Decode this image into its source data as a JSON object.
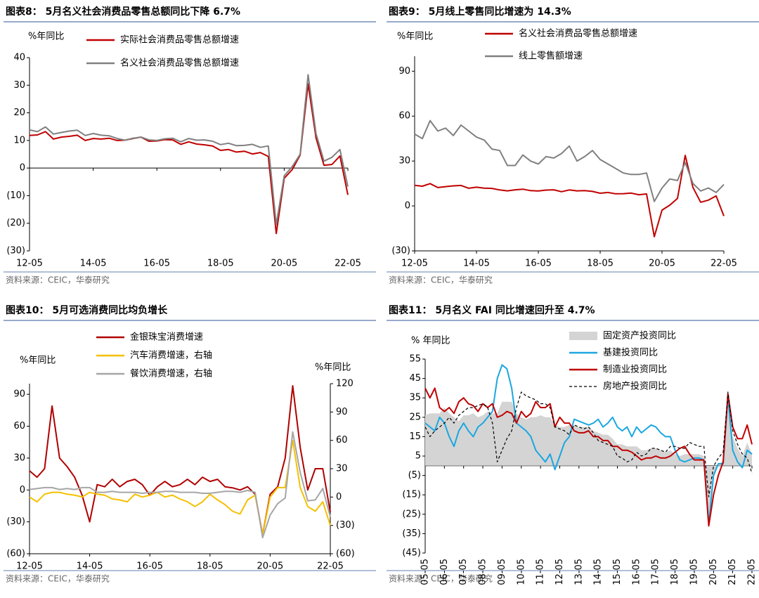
{
  "chart_data": [
    {
      "type": "line",
      "title": "图表8： 5月名义社会消费品零售总额同比下降 6.7%",
      "ylabel": "%年同比",
      "source": "资料来源：CEIC，华泰研究",
      "x_axis_at_zero": true,
      "categories": [
        "12-05",
        null,
        null,
        null,
        null,
        null,
        null,
        null,
        "14-05",
        null,
        null,
        null,
        null,
        null,
        null,
        null,
        "16-05",
        null,
        null,
        null,
        null,
        null,
        null,
        null,
        "18-05",
        null,
        null,
        null,
        null,
        null,
        null,
        null,
        "20-05",
        null,
        null,
        null,
        null,
        null,
        null,
        null,
        "22-05"
      ],
      "series": [
        {
          "name": "实际社会消费品零售总额增速",
          "color": "#c00000",
          "values": [
            11.8,
            12.0,
            13.2,
            10.5,
            11.2,
            11.5,
            11.9,
            10.0,
            10.7,
            10.5,
            10.8,
            10.0,
            10.1,
            10.7,
            11.2,
            9.7,
            9.8,
            10.3,
            10.2,
            8.6,
            9.5,
            8.7,
            8.4,
            8.0,
            6.4,
            6.7,
            5.8,
            6.1,
            5.1,
            5.6,
            4.2,
            -23.7,
            -3.7,
            -0.6,
            4.7,
            30.5,
            10.9,
            1.0,
            1.3,
            4.4,
            -9.7
          ]
        },
        {
          "name": "名义社会消费品零售总额增速",
          "color": "#808080",
          "values": [
            13.8,
            13.2,
            14.9,
            12.3,
            12.9,
            13.4,
            13.7,
            11.8,
            12.5,
            11.9,
            11.7,
            10.7,
            10.1,
            10.8,
            11.2,
            10.2,
            10.0,
            10.6,
            10.8,
            9.5,
            10.7,
            10.1,
            10.2,
            9.7,
            8.5,
            9.0,
            8.1,
            8.2,
            8.6,
            7.5,
            8.0,
            -20.5,
            -2.8,
            0.5,
            5.0,
            33.8,
            12.4,
            2.5,
            3.9,
            6.7,
            -6.7
          ]
        }
      ],
      "ylim": [
        -30,
        40
      ],
      "yticks": [
        {
          "value": -30,
          "label": "(30)"
        },
        {
          "value": -20,
          "label": "(20)"
        },
        {
          "value": -10,
          "label": "(10)"
        },
        0,
        10,
        20,
        30,
        40
      ]
    },
    {
      "type": "line",
      "title": "图表9： 5月线上零售同比增速为 14.3%",
      "ylabel": "%年同比",
      "source": "资料来源：CEIC，华泰研究",
      "x_axis_at_zero": false,
      "categories": [
        "12-05",
        null,
        null,
        null,
        null,
        null,
        null,
        null,
        "14-05",
        null,
        null,
        null,
        null,
        null,
        null,
        null,
        "16-05",
        null,
        null,
        null,
        null,
        null,
        null,
        null,
        "18-05",
        null,
        null,
        null,
        null,
        null,
        null,
        null,
        "20-05",
        null,
        null,
        null,
        null,
        null,
        null,
        null,
        "22-05"
      ],
      "series": [
        {
          "name": "名义社会消费品零售总额增速",
          "color": "#c00000",
          "values": [
            13.8,
            13.2,
            14.9,
            12.3,
            12.9,
            13.4,
            13.7,
            11.8,
            12.5,
            11.9,
            11.7,
            10.7,
            10.1,
            10.8,
            11.2,
            10.2,
            10.0,
            10.6,
            10.8,
            9.5,
            10.7,
            10.1,
            10.2,
            9.7,
            8.5,
            9.0,
            8.1,
            8.2,
            8.6,
            7.5,
            8.0,
            -20.5,
            -2.8,
            0.5,
            5.0,
            33.8,
            12.4,
            2.5,
            3.9,
            6.7,
            -6.7
          ]
        },
        {
          "name": "线上零售额增速",
          "color": "#808080",
          "values": [
            48,
            45,
            57,
            50,
            52,
            47,
            54,
            50,
            46,
            44,
            38,
            37,
            27,
            27,
            34,
            30,
            28,
            33,
            32,
            35,
            40,
            30,
            33,
            37,
            31,
            28,
            25,
            22,
            21,
            21,
            22,
            3,
            12,
            18,
            17,
            29,
            15,
            10,
            12,
            9,
            14.3
          ]
        }
      ],
      "ylim": [
        -30,
        100
      ],
      "yticks": [
        {
          "value": -30,
          "label": "(30)"
        },
        0,
        30,
        60,
        90
      ]
    },
    {
      "type": "line",
      "title": "图表10： 5月可选消费同比均负增长",
      "ylabel": "%年同比",
      "y2label": "%年同比",
      "source": "资料来源：CEIC，华泰研究",
      "x_axis_at_zero": false,
      "categories": [
        "12-05",
        null,
        null,
        null,
        null,
        null,
        null,
        null,
        "14-05",
        null,
        null,
        null,
        null,
        null,
        null,
        null,
        "16-05",
        null,
        null,
        null,
        null,
        null,
        null,
        null,
        "18-05",
        null,
        null,
        null,
        null,
        null,
        null,
        null,
        "20-05",
        null,
        null,
        null,
        null,
        null,
        null,
        null,
        "22-05"
      ],
      "series": [
        {
          "name": "金银珠宝消费增速",
          "color": "#b00000",
          "values": [
            18,
            12,
            20,
            79,
            30,
            22,
            12,
            -5,
            -30,
            5,
            3,
            10,
            3,
            8,
            10,
            5,
            -5,
            3,
            8,
            3,
            5,
            10,
            5,
            12,
            8,
            10,
            3,
            2,
            0,
            3,
            -4,
            -42,
            -4,
            3,
            30,
            98,
            40,
            0,
            20,
            20,
            -21
          ]
        },
        {
          "name": "汽车消费增速，右轴",
          "color": "#f5c000",
          "axis": "y2",
          "values": [
            0,
            -5,
            3,
            5,
            5,
            3,
            2,
            0,
            5,
            3,
            2,
            -2,
            -3,
            -5,
            3,
            0,
            2,
            5,
            0,
            2,
            -2,
            -5,
            -10,
            -5,
            3,
            -3,
            -8,
            -15,
            -18,
            -3,
            2,
            -40,
            0,
            10,
            10,
            60,
            10,
            -10,
            -15,
            -5,
            -30
          ]
        },
        {
          "name": "餐饮消费增速，右轴",
          "color": "#a6a6a6",
          "axis": "y2",
          "values": [
            8,
            9,
            10,
            10,
            8,
            9,
            8,
            10,
            10,
            5,
            5,
            6,
            5,
            5,
            5,
            4,
            5,
            5,
            6,
            6,
            5,
            5,
            5,
            4,
            4,
            5,
            6,
            6,
            5,
            7,
            5,
            -43,
            -19,
            -7,
            -1,
            69,
            26,
            -4,
            -3,
            9,
            -21
          ]
        }
      ],
      "ylim": [
        -60,
        100
      ],
      "yticks": [
        {
          "value": -60,
          "label": "(60)"
        },
        {
          "value": -30,
          "label": "(30)"
        },
        0,
        30,
        60,
        90
      ],
      "y2lim": [
        -60,
        120
      ],
      "y2ticks": [
        {
          "value": -60,
          "label": "(60)"
        },
        {
          "value": -30,
          "label": "(30)"
        },
        0,
        30,
        60,
        90,
        120
      ]
    },
    {
      "type": "line",
      "title": "图表11： 5月名义 FAI 同比增速回升至 4.7%",
      "ylabel": "% 年同比",
      "source": "资料来源：CEIC，华泰研究",
      "x_axis_at_zero": true,
      "rotate_x_labels": true,
      "categories": [
        "05-05",
        null,
        null,
        null,
        "06-05",
        null,
        null,
        null,
        "07-05",
        null,
        null,
        null,
        "08-05",
        null,
        null,
        null,
        "09-05",
        null,
        null,
        null,
        "10-05",
        null,
        null,
        null,
        "11-05",
        null,
        null,
        null,
        "12-05",
        null,
        null,
        null,
        "13-05",
        null,
        null,
        null,
        "14-05",
        null,
        null,
        null,
        "15-05",
        null,
        null,
        null,
        "16-05",
        null,
        null,
        null,
        "17-05",
        null,
        null,
        null,
        "18-05",
        null,
        null,
        null,
        "19-05",
        null,
        null,
        null,
        "20-05",
        null,
        null,
        null,
        "21-05",
        null,
        null,
        null,
        "22-05"
      ],
      "series": [
        {
          "name": "固定资产投资同比",
          "color": "#d4d4d4",
          "style": "area",
          "values": [
            26,
            27,
            27,
            27,
            30,
            27,
            25,
            23,
            26,
            26,
            27,
            25,
            26,
            28,
            27,
            27,
            33,
            33,
            33,
            27,
            25,
            24,
            25,
            25,
            26,
            25,
            25,
            21,
            20,
            20,
            21,
            21,
            20,
            20,
            20,
            18,
            17,
            16,
            16,
            14,
            11,
            11,
            10,
            10,
            10,
            8,
            8,
            9,
            9,
            8,
            7,
            8,
            6,
            5,
            6,
            6,
            6,
            6,
            5,
            -25,
            -6,
            0,
            3,
            35,
            15,
            9,
            5,
            12,
            6
          ]
        },
        {
          "name": "基建投资同比",
          "color": "#1aa7e0",
          "values": [
            22,
            20,
            18,
            25,
            22,
            15,
            10,
            18,
            22,
            18,
            15,
            20,
            22,
            25,
            28,
            45,
            52,
            50,
            40,
            22,
            20,
            18,
            15,
            8,
            5,
            2,
            6,
            -2,
            5,
            12,
            15,
            24,
            23,
            22,
            21,
            22,
            24,
            20,
            22,
            25,
            20,
            18,
            20,
            15,
            20,
            17,
            19,
            21,
            20,
            17,
            15,
            15,
            8,
            3,
            2,
            3,
            4,
            4,
            3,
            -30,
            -5,
            1,
            1,
            36,
            8,
            2,
            -1,
            8,
            6
          ]
        },
        {
          "name": "制造业投资同比",
          "color": "#c00000",
          "values": [
            40,
            35,
            40,
            30,
            28,
            30,
            27,
            33,
            35,
            32,
            31,
            28,
            32,
            30,
            32,
            25,
            26,
            28,
            27,
            22,
            28,
            25,
            27,
            33,
            30,
            30,
            32,
            20,
            25,
            22,
            22,
            18,
            17,
            17,
            18,
            15,
            15,
            13,
            13,
            10,
            10,
            8,
            8,
            7,
            5,
            3,
            4,
            4,
            5,
            4,
            4,
            5,
            7,
            9,
            10,
            6,
            3,
            3,
            3,
            -31,
            -15,
            -5,
            2,
            37,
            20,
            14,
            14,
            21,
            11
          ]
        },
        {
          "name": "房地产投资同比",
          "color": "#000000",
          "style": "dashed",
          "values": [
            20,
            15,
            18,
            20,
            22,
            25,
            22,
            26,
            28,
            30,
            30,
            31,
            32,
            30,
            22,
            2,
            8,
            14,
            18,
            30,
            38,
            36,
            35,
            34,
            32,
            32,
            30,
            20,
            19,
            18,
            16,
            21,
            20,
            19,
            20,
            17,
            13,
            12,
            11,
            10,
            5,
            4,
            2,
            3,
            7,
            5,
            6,
            9,
            9,
            8,
            7,
            10,
            10,
            9,
            9,
            12,
            11,
            10,
            10,
            -16,
            -0.3,
            4,
            7,
            38,
            18,
            11,
            6,
            4,
            -4
          ]
        }
      ],
      "ylim": [
        -45,
        55
      ],
      "yticks": [
        {
          "value": -45,
          "label": "(45)"
        },
        {
          "value": -35,
          "label": "(35)"
        },
        {
          "value": -25,
          "label": "(25)"
        },
        {
          "value": -15,
          "label": "(15)"
        },
        {
          "value": -5,
          "label": "(5)"
        },
        5,
        15,
        25,
        35,
        45,
        55
      ]
    }
  ]
}
